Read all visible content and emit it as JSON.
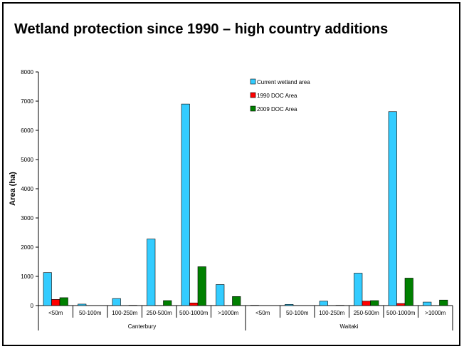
{
  "chart_data": {
    "type": "bar",
    "title": "Wetland protection since 1990 – high country additions",
    "ylabel": "Area  (ha)",
    "xlabel": "",
    "ylim": [
      0,
      8000
    ],
    "yticks": [
      0,
      1000,
      2000,
      3000,
      4000,
      5000,
      6000,
      7000,
      8000
    ],
    "groups": [
      "Canterbury",
      "Waitaki"
    ],
    "categories": [
      "<50m",
      "50-100m",
      "100-250m",
      "250-500m",
      "500-1000m",
      ">1000m",
      "<50m",
      "50-100m",
      "100-250m",
      "250-500m",
      "500-1000m",
      ">1000m"
    ],
    "series": [
      {
        "name": "Current wetland area",
        "color": "#33CCFF",
        "values": [
          1130,
          50,
          240,
          2280,
          6900,
          720,
          10,
          40,
          150,
          1110,
          6640,
          120
        ]
      },
      {
        "name": "1990 DOC Area",
        "color": "#FF0000",
        "values": [
          210,
          0,
          0,
          0,
          90,
          0,
          0,
          0,
          0,
          150,
          70,
          0
        ]
      },
      {
        "name": "2009 DOC Area",
        "color": "#008000",
        "values": [
          270,
          0,
          10,
          170,
          1330,
          310,
          0,
          0,
          10,
          170,
          940,
          190
        ]
      }
    ],
    "legend_position": "top-right",
    "grid": false
  }
}
